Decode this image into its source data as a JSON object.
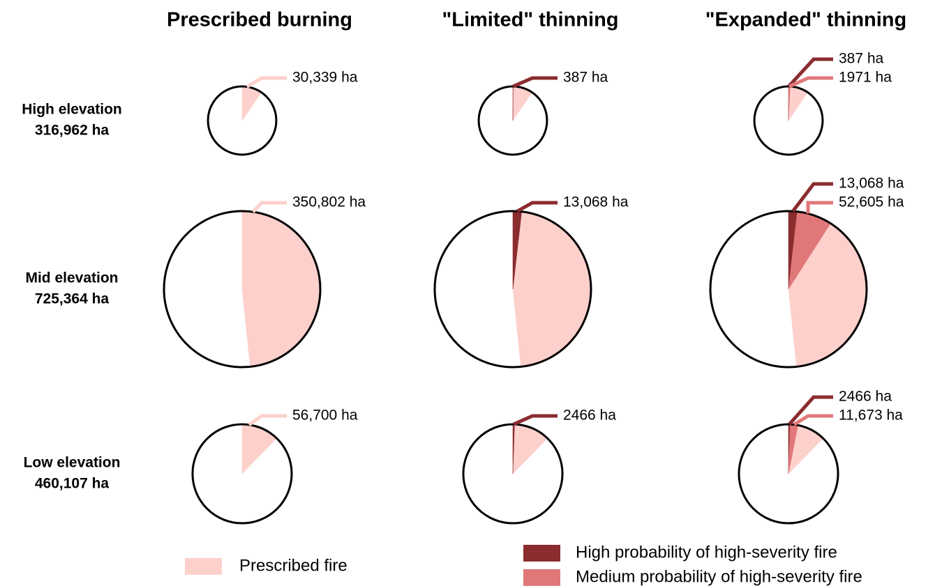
{
  "chart_data": {
    "type": "pie",
    "columns": [
      "Prescribed burning",
      "\"Limited\" thinning",
      "\"Expanded\" thinning"
    ],
    "rows": [
      {
        "name": "High elevation",
        "total": 316962,
        "total_label": "316,962 ha"
      },
      {
        "name": "Mid elevation",
        "total": 725364,
        "total_label": "725,364 ha"
      },
      {
        "name": "Low elevation",
        "total": 460107,
        "total_label": "460,107 ha"
      }
    ],
    "series": [
      {
        "name": "Prescribed fire",
        "color": "#fdd0cc"
      },
      {
        "name": "High probability of high-severity fire",
        "color": "#8b2c2f"
      },
      {
        "name": "Medium probability of high-severity fire",
        "color": "#e0787a"
      }
    ],
    "pies": [
      [
        {
          "values": [
            30339,
            null,
            null
          ],
          "value_labels": [
            "30,339 ha",
            null,
            null
          ]
        },
        {
          "values": [
            30339,
            387,
            null
          ],
          "value_labels": [
            null,
            "387 ha",
            null
          ]
        },
        {
          "values": [
            30339,
            387,
            1971
          ],
          "value_labels": [
            null,
            "387 ha",
            "1971 ha"
          ]
        }
      ],
      [
        {
          "values": [
            350802,
            null,
            null
          ],
          "value_labels": [
            "350,802 ha",
            null,
            null
          ]
        },
        {
          "values": [
            350802,
            13068,
            null
          ],
          "value_labels": [
            null,
            "13,068 ha",
            null
          ]
        },
        {
          "values": [
            350802,
            13068,
            52605
          ],
          "value_labels": [
            null,
            "13,068 ha",
            "52,605 ha"
          ]
        }
      ],
      [
        {
          "values": [
            56700,
            null,
            null
          ],
          "value_labels": [
            "56,700 ha",
            null,
            null
          ]
        },
        {
          "values": [
            56700,
            2466,
            null
          ],
          "value_labels": [
            null,
            "2466 ha",
            null
          ]
        },
        {
          "values": [
            56700,
            2466,
            11673
          ],
          "value_labels": [
            null,
            "2466 ha",
            "11,673 ha"
          ]
        }
      ]
    ]
  }
}
